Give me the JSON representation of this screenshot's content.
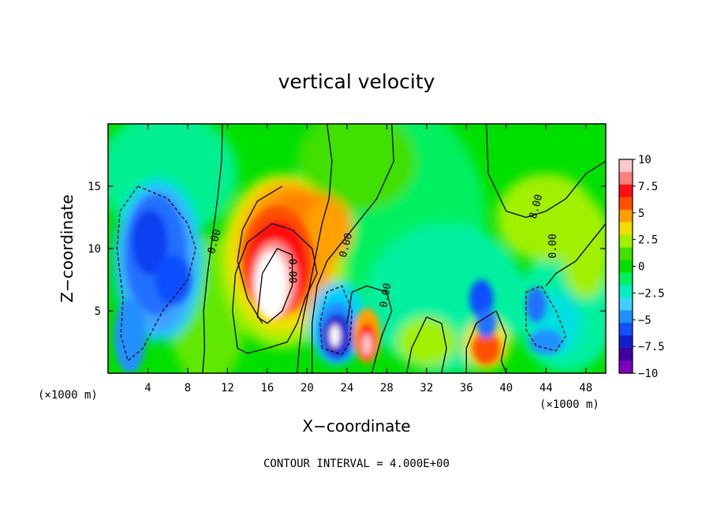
{
  "chart_data": {
    "type": "heatmap",
    "title": "vertical velocity",
    "xlabel": "X−coordinate",
    "ylabel": "Z−coordinate",
    "x_unit_left": "(×1000 m)",
    "x_unit_right": "(×1000 m)",
    "xlim": [
      0,
      50
    ],
    "ylim": [
      0,
      20
    ],
    "x_ticks": [
      4,
      8,
      12,
      16,
      20,
      24,
      28,
      32,
      36,
      40,
      44,
      48
    ],
    "y_ticks": [
      5,
      10,
      15
    ],
    "colorbar": {
      "ticks": [
        10,
        7.5,
        5,
        2.5,
        0,
        -2.5,
        -5,
        -7.5,
        -10
      ],
      "tick_labels": [
        "10",
        "7.5",
        "5",
        "2.5",
        "0",
        "−2.5",
        "−5",
        "−7.5",
        "−10"
      ],
      "colors": [
        "#ffc8c8",
        "#ff8080",
        "#ff1010",
        "#ff5000",
        "#ffa000",
        "#f0e000",
        "#a0f000",
        "#40e000",
        "#00e000",
        "#00f060",
        "#00f0c0",
        "#40d0ff",
        "#2090ff",
        "#1050ff",
        "#1020d0",
        "#4000a0",
        "#8000c0"
      ]
    },
    "contour_labels": [
      "0.00",
      "0.00",
      "0.00",
      "0.00",
      "0.00",
      "8.00"
    ],
    "features": [
      {
        "x": 16.5,
        "z": 7.5,
        "w_max": 15.0
      },
      {
        "x": 5,
        "z": 9,
        "w_min": -6.5
      },
      {
        "x": 23,
        "z": 3,
        "w_min": -11
      },
      {
        "x": 26,
        "z": 2.5,
        "w_max": 7
      },
      {
        "x": 38,
        "z": 2,
        "w_max": 6
      }
    ]
  },
  "note": "CONTOUR INTERVAL = 4.000E+00"
}
